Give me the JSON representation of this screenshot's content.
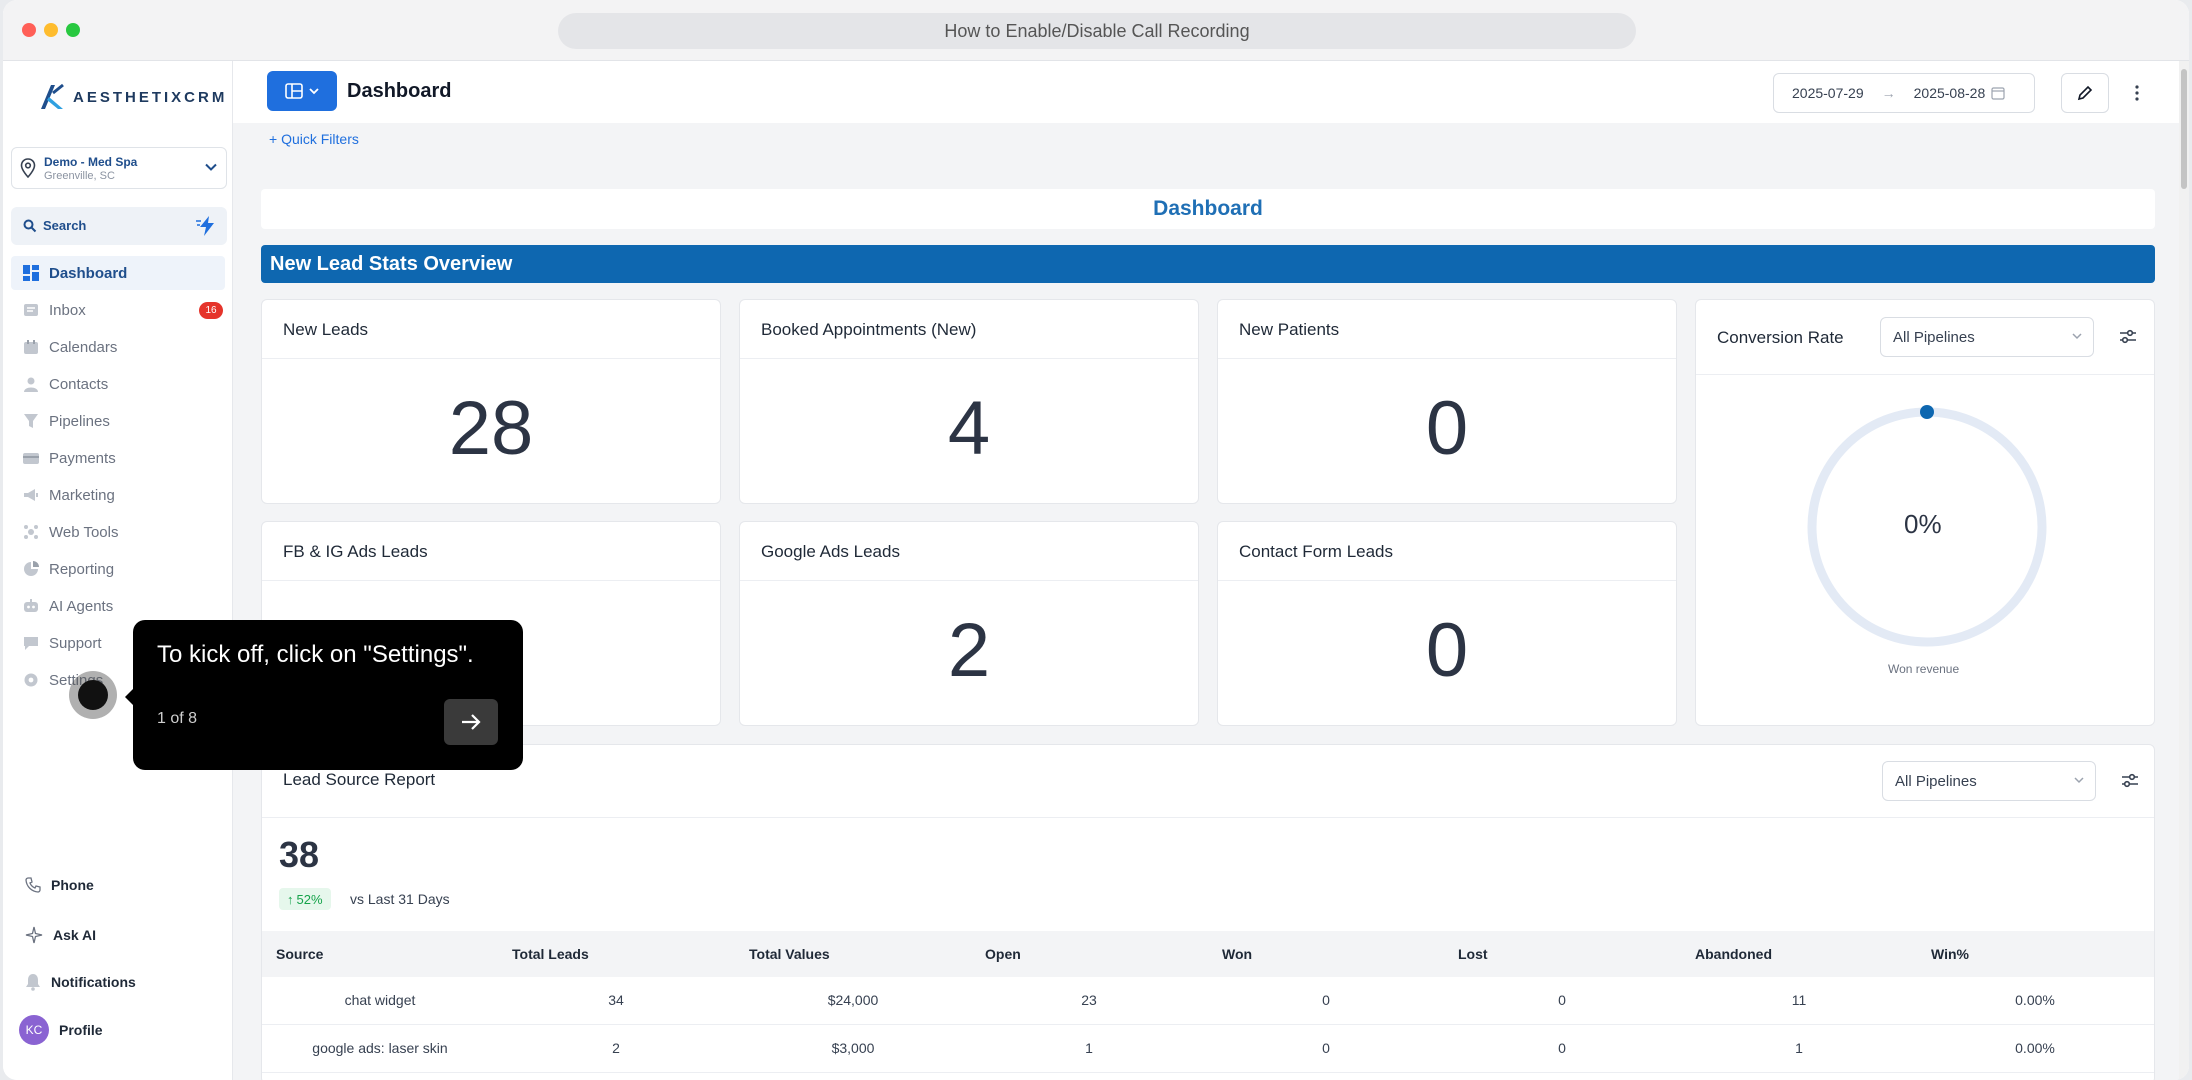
{
  "browser": {
    "url_title": "How to Enable/Disable Call Recording"
  },
  "sidebar": {
    "logo": "AESTHETIXCRM",
    "location": {
      "name": "Demo - Med Spa",
      "sub": "Greenville, SC"
    },
    "search_label": "Search",
    "items": [
      {
        "label": "Dashboard",
        "icon": "dashboard-icon",
        "active": true
      },
      {
        "label": "Inbox",
        "icon": "inbox-icon",
        "badge": "16"
      },
      {
        "label": "Calendars",
        "icon": "calendar-icon"
      },
      {
        "label": "Contacts",
        "icon": "contacts-icon"
      },
      {
        "label": "Pipelines",
        "icon": "pipelines-icon"
      },
      {
        "label": "Payments",
        "icon": "payments-icon"
      },
      {
        "label": "Marketing",
        "icon": "marketing-icon"
      },
      {
        "label": "Web Tools",
        "icon": "web-tools-icon"
      },
      {
        "label": "Reporting",
        "icon": "reporting-icon"
      },
      {
        "label": "AI Agents",
        "icon": "ai-agents-icon"
      },
      {
        "label": "Support",
        "icon": "support-icon"
      },
      {
        "label": "Settings",
        "icon": "settings-icon"
      }
    ],
    "bottom": {
      "phone": "Phone",
      "ask_ai": "Ask AI",
      "notifications": "Notifications",
      "profile": "Profile",
      "avatar_initials": "KC"
    }
  },
  "header": {
    "title": "Dashboard",
    "date_from": "2025-07-29",
    "date_to": "2025-08-28",
    "quick_filters": "+ Quick Filters"
  },
  "dashboard": {
    "heading": "Dashboard",
    "section_title": "New Lead Stats Overview",
    "cards": [
      {
        "title": "New Leads",
        "value": "28"
      },
      {
        "title": "Booked Appointments (New)",
        "value": "4"
      },
      {
        "title": "New Patients",
        "value": "0"
      },
      {
        "title": "FB & IG Ads Leads",
        "value": ""
      },
      {
        "title": "Google Ads Leads",
        "value": "2"
      },
      {
        "title": "Contact Form Leads",
        "value": "0"
      }
    ],
    "conversion": {
      "title": "Conversion Rate",
      "select": "All Pipelines",
      "value": "0%",
      "caption": "Won revenue",
      "rate": 0
    }
  },
  "lead_source": {
    "title": "Lead Source Report",
    "select": "All Pipelines",
    "total": "38",
    "change": "52%",
    "vs": "vs Last 31 Days",
    "columns": [
      "Source",
      "Total Leads",
      "Total Values",
      "Open",
      "Won",
      "Lost",
      "Abandoned",
      "Win%"
    ],
    "rows": [
      [
        "chat widget",
        "34",
        "$24,000",
        "23",
        "0",
        "0",
        "11",
        "0.00%"
      ],
      [
        "google ads: laser skin",
        "2",
        "$3,000",
        "1",
        "0",
        "0",
        "1",
        "0.00%"
      ]
    ]
  },
  "tooltip": {
    "text": "To kick off, click on \"Settings\".",
    "step": "1 of 8"
  },
  "colors": {
    "accent": "#1f6fde",
    "section": "#0e67b0",
    "badge": "#e5342b"
  }
}
